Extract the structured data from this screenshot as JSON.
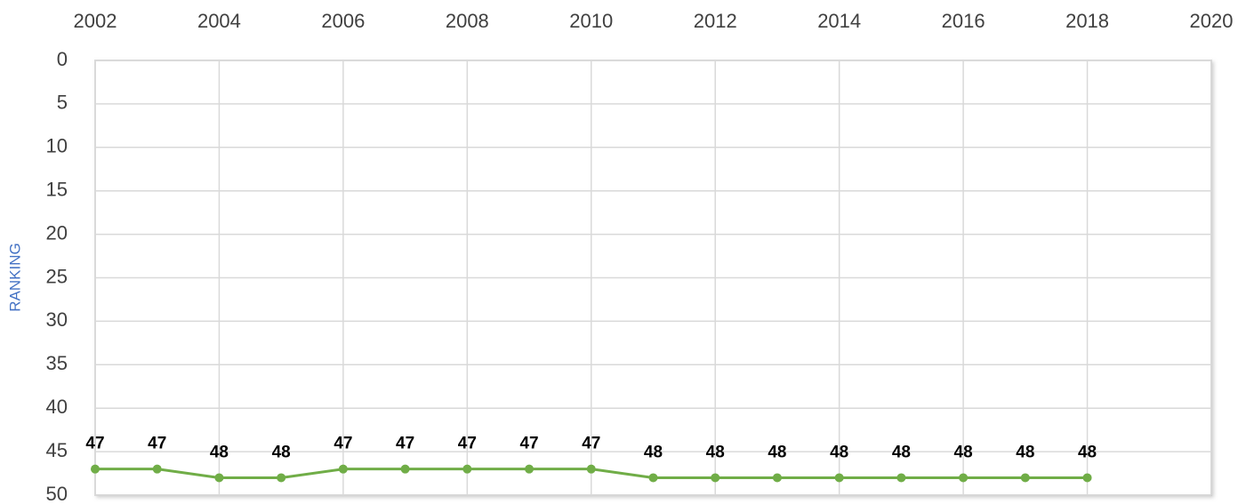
{
  "chart_data": {
    "type": "line",
    "y_label": "RANKING",
    "x": [
      2002,
      2003,
      2004,
      2005,
      2006,
      2007,
      2008,
      2009,
      2010,
      2011,
      2012,
      2013,
      2014,
      2015,
      2016,
      2017,
      2018
    ],
    "series": [
      {
        "name": "RANKING",
        "color": "#70ad47",
        "values": [
          47,
          47,
          48,
          48,
          47,
          47,
          47,
          47,
          47,
          48,
          48,
          48,
          48,
          48,
          48,
          48,
          48
        ]
      }
    ],
    "xlim": [
      2002,
      2020
    ],
    "xticks": [
      2002,
      2004,
      2006,
      2008,
      2010,
      2012,
      2014,
      2016,
      2018,
      2020
    ],
    "ylim": [
      0,
      50
    ],
    "yticks": [
      0,
      5,
      10,
      15,
      20,
      25,
      30,
      35,
      40,
      45,
      50
    ],
    "y_inverted": true,
    "x_axis_position": "top",
    "grid": true,
    "data_labels": true
  }
}
